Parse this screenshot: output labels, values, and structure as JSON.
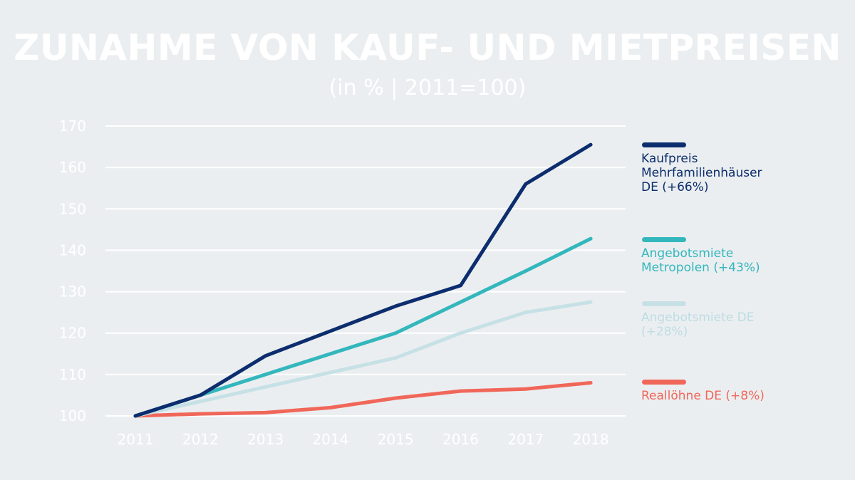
{
  "title": "ZUNAHME VON KAUF- UND  MIETPREISEN",
  "subtitle": "(in % | 2011=100)",
  "chart_data": {
    "type": "line",
    "x": [
      "2011",
      "2012",
      "2013",
      "2014",
      "2015",
      "2016",
      "2017",
      "2018"
    ],
    "ylim": [
      100,
      170
    ],
    "yticks": [
      "100",
      "110",
      "120",
      "130",
      "140",
      "150",
      "160",
      "170"
    ],
    "grid": true,
    "legend_position": "right",
    "series": [
      {
        "name": "Kaufpreis Mehrfamilienhäuser DE (+66%)",
        "label": "Kaufpreis\nMehrfamilienhäuser\nDE (+66%)",
        "color": "#0c2d6e",
        "values": [
          100,
          105,
          114.5,
          120.5,
          126.5,
          131.5,
          156,
          165.5
        ]
      },
      {
        "name": "Angebotsmiete Metropolen (+43%)",
        "label": "Angebotsmiete\nMetropolen (+43%)",
        "color": "#33b7bd",
        "values": [
          100,
          105,
          110,
          115,
          120,
          127.5,
          135,
          142.8
        ]
      },
      {
        "name": "Angebotsmiete DE (+28%)",
        "label": "Angebotsmiete DE\n(+28%)",
        "color": "#c6e1e6",
        "values": [
          100,
          103.5,
          107,
          110.5,
          114,
          120,
          125,
          127.5
        ]
      },
      {
        "name": "Reallöhne DE (+8%)",
        "label": "Reallöhne DE (+8%)",
        "color": "#f0675a",
        "values": [
          100,
          100.5,
          100.8,
          102,
          104.3,
          106,
          106.5,
          108
        ]
      }
    ]
  }
}
